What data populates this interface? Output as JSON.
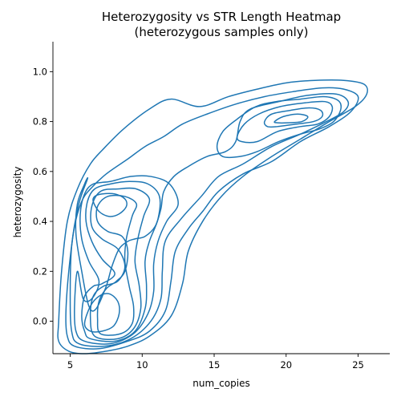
{
  "chart_data": {
    "type": "kde_contour",
    "title_lines": [
      "Heterozygosity vs STR Length Heatmap",
      "(heterozygous samples only)"
    ],
    "xlabel": "num_copies",
    "ylabel": "heterozygosity",
    "xlim": [
      3.8,
      27.2
    ],
    "ylim": [
      -0.13,
      1.12
    ],
    "x_ticks": [
      5,
      10,
      15,
      20,
      25
    ],
    "y_ticks": [
      0.0,
      0.2,
      0.4,
      0.6,
      0.8,
      1.0
    ],
    "grid": false,
    "line_color": "#1f77b4",
    "contours": [
      [
        [
          4.9,
          -0.12
        ],
        [
          6,
          -0.13
        ],
        [
          7.5,
          -0.12
        ],
        [
          9,
          -0.1
        ],
        [
          10.5,
          -0.06
        ],
        [
          12,
          0.02
        ],
        [
          12.8,
          0.15
        ],
        [
          13.2,
          0.28
        ],
        [
          14.2,
          0.4
        ],
        [
          15.5,
          0.5
        ],
        [
          17,
          0.58
        ],
        [
          19,
          0.66
        ],
        [
          21,
          0.73
        ],
        [
          23,
          0.8
        ],
        [
          24.8,
          0.86
        ],
        [
          25.6,
          0.91
        ],
        [
          25.4,
          0.95
        ],
        [
          24,
          0.965
        ],
        [
          22,
          0.965
        ],
        [
          20,
          0.955
        ],
        [
          18,
          0.93
        ],
        [
          16,
          0.9
        ],
        [
          14,
          0.86
        ],
        [
          12,
          0.89
        ],
        [
          10.5,
          0.85
        ],
        [
          8.7,
          0.77
        ],
        [
          7.3,
          0.69
        ],
        [
          6.4,
          0.63
        ],
        [
          5.5,
          0.53
        ],
        [
          4.8,
          0.4
        ],
        [
          4.4,
          0.2
        ],
        [
          4.2,
          0.0
        ],
        [
          4.2,
          -0.08
        ],
        [
          4.9,
          -0.12
        ]
      ],
      [
        [
          5.3,
          -0.1
        ],
        [
          7,
          -0.11
        ],
        [
          9,
          -0.08
        ],
        [
          10.5,
          -0.04
        ],
        [
          11.6,
          0.04
        ],
        [
          12,
          0.16
        ],
        [
          12.3,
          0.28
        ],
        [
          13.2,
          0.37
        ],
        [
          14.2,
          0.44
        ],
        [
          15.3,
          0.52
        ],
        [
          17,
          0.59
        ],
        [
          19,
          0.64
        ],
        [
          21,
          0.72
        ],
        [
          23,
          0.78
        ],
        [
          24.5,
          0.84
        ],
        [
          25,
          0.9
        ],
        [
          24,
          0.93
        ],
        [
          22.5,
          0.935
        ],
        [
          20.5,
          0.92
        ],
        [
          18.5,
          0.9
        ],
        [
          16.5,
          0.87
        ],
        [
          14.5,
          0.83
        ],
        [
          12.8,
          0.79
        ],
        [
          11.5,
          0.74
        ],
        [
          10.2,
          0.7
        ],
        [
          9,
          0.65
        ],
        [
          7.5,
          0.59
        ],
        [
          6.4,
          0.53
        ],
        [
          5.8,
          0.48
        ],
        [
          5.3,
          0.38
        ],
        [
          4.9,
          0.2
        ],
        [
          4.7,
          0.03
        ],
        [
          4.8,
          -0.06
        ],
        [
          5.3,
          -0.1
        ]
      ],
      [
        [
          5.6,
          -0.09
        ],
        [
          7.4,
          -0.1
        ],
        [
          9.2,
          -0.07
        ],
        [
          10.6,
          0.0
        ],
        [
          11.3,
          0.09
        ],
        [
          11.4,
          0.2
        ],
        [
          11.6,
          0.32
        ],
        [
          12.7,
          0.41
        ],
        [
          14.1,
          0.5
        ],
        [
          15.3,
          0.58
        ],
        [
          17,
          0.63
        ],
        [
          19,
          0.7
        ],
        [
          21,
          0.75
        ],
        [
          22.8,
          0.8
        ],
        [
          24,
          0.84
        ],
        [
          24.3,
          0.88
        ],
        [
          23.5,
          0.91
        ],
        [
          21.5,
          0.905
        ],
        [
          19.5,
          0.88
        ],
        [
          17.5,
          0.85
        ],
        [
          16.8,
          0.8
        ],
        [
          16.5,
          0.72
        ],
        [
          15.8,
          0.68
        ],
        [
          14.5,
          0.66
        ],
        [
          13.2,
          0.62
        ],
        [
          12.2,
          0.58
        ],
        [
          11.5,
          0.52
        ],
        [
          11.3,
          0.45
        ],
        [
          10.9,
          0.38
        ],
        [
          10.2,
          0.34
        ],
        [
          9.5,
          0.33
        ],
        [
          9,
          0.32
        ],
        [
          8.4,
          0.29
        ],
        [
          7.9,
          0.22
        ],
        [
          7.5,
          0.14
        ],
        [
          6.8,
          0.05
        ],
        [
          6.3,
          0.06
        ],
        [
          5.8,
          0.2
        ],
        [
          5.4,
          0.35
        ],
        [
          5.5,
          0.47
        ],
        [
          6,
          0.55
        ],
        [
          6.2,
          0.57
        ],
        [
          5.6,
          0.47
        ],
        [
          5.1,
          0.3
        ],
        [
          5.0,
          0.1
        ],
        [
          5.1,
          -0.04
        ],
        [
          5.6,
          -0.09
        ]
      ],
      [
        [
          6.0,
          -0.08
        ],
        [
          7.8,
          -0.09
        ],
        [
          9.4,
          -0.05
        ],
        [
          10.4,
          0.03
        ],
        [
          10.8,
          0.12
        ],
        [
          10.8,
          0.23
        ],
        [
          11.1,
          0.32
        ],
        [
          11.7,
          0.4
        ],
        [
          12.5,
          0.47
        ],
        [
          11.9,
          0.55
        ],
        [
          10.6,
          0.58
        ],
        [
          9.2,
          0.58
        ],
        [
          7.8,
          0.56
        ],
        [
          6.6,
          0.55
        ],
        [
          6.0,
          0.51
        ],
        [
          5.7,
          0.43
        ],
        [
          5.8,
          0.33
        ],
        [
          6.3,
          0.24
        ],
        [
          7.0,
          0.16
        ],
        [
          6.5,
          0.09
        ],
        [
          5.9,
          0.09
        ],
        [
          5.5,
          0.2
        ],
        [
          5.3,
          0.06
        ],
        [
          5.4,
          -0.04
        ],
        [
          6.0,
          -0.08
        ]
      ],
      [
        [
          6.4,
          -0.07
        ],
        [
          8.1,
          -0.08
        ],
        [
          9.5,
          -0.04
        ],
        [
          10.2,
          0.05
        ],
        [
          10.3,
          0.14
        ],
        [
          10.2,
          0.24
        ],
        [
          10.5,
          0.32
        ],
        [
          11.1,
          0.41
        ],
        [
          11.2,
          0.5
        ],
        [
          10.4,
          0.55
        ],
        [
          9.1,
          0.56
        ],
        [
          7.8,
          0.55
        ],
        [
          6.7,
          0.53
        ],
        [
          6.2,
          0.48
        ],
        [
          6.1,
          0.4
        ],
        [
          6.5,
          0.32
        ],
        [
          7.2,
          0.25
        ],
        [
          8.1,
          0.19
        ],
        [
          7.2,
          0.15
        ],
        [
          6.6,
          0.14
        ],
        [
          6.0,
          0.1
        ],
        [
          5.8,
          0.02
        ],
        [
          6.0,
          -0.04
        ],
        [
          6.4,
          -0.07
        ]
      ],
      [
        [
          6.7,
          -0.06
        ],
        [
          8.3,
          -0.07
        ],
        [
          9.4,
          -0.03
        ],
        [
          9.9,
          0.05
        ],
        [
          9.8,
          0.14
        ],
        [
          9.5,
          0.24
        ],
        [
          9.7,
          0.33
        ],
        [
          10.1,
          0.42
        ],
        [
          10.5,
          0.49
        ],
        [
          9.6,
          0.53
        ],
        [
          8.3,
          0.53
        ],
        [
          7.1,
          0.52
        ],
        [
          6.5,
          0.46
        ],
        [
          6.5,
          0.38
        ],
        [
          7.2,
          0.33
        ],
        [
          8.3,
          0.29
        ],
        [
          8.8,
          0.22
        ],
        [
          8.3,
          0.16
        ],
        [
          7.3,
          0.14
        ],
        [
          6.6,
          0.1
        ],
        [
          6.4,
          0.02
        ],
        [
          6.7,
          -0.06
        ]
      ],
      [
        [
          7.1,
          -0.05
        ],
        [
          8.5,
          -0.05
        ],
        [
          9.3,
          -0.01
        ],
        [
          9.4,
          0.06
        ],
        [
          9.1,
          0.14
        ],
        [
          8.8,
          0.24
        ],
        [
          8.9,
          0.33
        ],
        [
          9.3,
          0.42
        ],
        [
          9.6,
          0.47
        ],
        [
          8.8,
          0.5
        ],
        [
          7.6,
          0.5
        ],
        [
          6.9,
          0.46
        ],
        [
          6.9,
          0.4
        ],
        [
          7.6,
          0.36
        ],
        [
          8.6,
          0.34
        ],
        [
          9.0,
          0.28
        ],
        [
          8.8,
          0.2
        ],
        [
          8.2,
          0.16
        ],
        [
          7.5,
          0.13
        ],
        [
          7.0,
          0.08
        ],
        [
          6.9,
          0.01
        ],
        [
          7.1,
          -0.05
        ]
      ],
      [
        [
          6.6,
          0.48
        ],
        [
          7.0,
          0.44
        ],
        [
          7.7,
          0.42
        ],
        [
          8.4,
          0.43
        ],
        [
          8.9,
          0.46
        ],
        [
          8.8,
          0.49
        ],
        [
          8.1,
          0.51
        ],
        [
          7.2,
          0.51
        ],
        [
          6.7,
          0.5
        ],
        [
          6.6,
          0.48
        ]
      ],
      [
        [
          6.0,
          -0.01
        ],
        [
          6.4,
          0.06
        ],
        [
          7.0,
          0.1
        ],
        [
          7.7,
          0.11
        ],
        [
          8.3,
          0.08
        ],
        [
          8.4,
          0.03
        ],
        [
          8.0,
          -0.02
        ],
        [
          7.2,
          -0.04
        ],
        [
          6.4,
          -0.04
        ],
        [
          6.0,
          -0.01
        ]
      ],
      [
        [
          15.2,
          0.7
        ],
        [
          15.6,
          0.76
        ],
        [
          16.6,
          0.81
        ],
        [
          17.9,
          0.86
        ],
        [
          19.3,
          0.88
        ],
        [
          21,
          0.89
        ],
        [
          22.6,
          0.9
        ],
        [
          23.6,
          0.885
        ],
        [
          23.8,
          0.85
        ],
        [
          23.3,
          0.8
        ],
        [
          22.3,
          0.77
        ],
        [
          21,
          0.75
        ],
        [
          19.5,
          0.72
        ],
        [
          18,
          0.68
        ],
        [
          16.8,
          0.66
        ],
        [
          15.6,
          0.66
        ],
        [
          15.2,
          0.7
        ]
      ],
      [
        [
          16.6,
          0.74
        ],
        [
          17.1,
          0.79
        ],
        [
          18.1,
          0.83
        ],
        [
          19.6,
          0.86
        ],
        [
          21.3,
          0.875
        ],
        [
          22.7,
          0.88
        ],
        [
          23.2,
          0.86
        ],
        [
          23.0,
          0.82
        ],
        [
          22.2,
          0.79
        ],
        [
          21.0,
          0.78
        ],
        [
          19.4,
          0.76
        ],
        [
          18.0,
          0.72
        ],
        [
          16.9,
          0.72
        ],
        [
          16.6,
          0.74
        ]
      ],
      [
        [
          18.5,
          0.8
        ],
        [
          19.0,
          0.83
        ],
        [
          20.3,
          0.845
        ],
        [
          21.6,
          0.855
        ],
        [
          22.4,
          0.845
        ],
        [
          22.5,
          0.82
        ],
        [
          21.9,
          0.8
        ],
        [
          20.7,
          0.79
        ],
        [
          19.4,
          0.78
        ],
        [
          18.7,
          0.78
        ],
        [
          18.5,
          0.8
        ]
      ],
      [
        [
          19.2,
          0.8
        ],
        [
          19.8,
          0.82
        ],
        [
          20.8,
          0.83
        ],
        [
          21.5,
          0.82
        ],
        [
          21.1,
          0.8
        ],
        [
          20.1,
          0.795
        ],
        [
          19.4,
          0.795
        ],
        [
          19.2,
          0.8
        ]
      ]
    ]
  }
}
